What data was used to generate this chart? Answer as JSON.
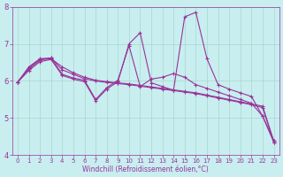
{
  "xlabel": "Windchill (Refroidissement éolien,°C)",
  "x": [
    0,
    1,
    2,
    3,
    4,
    5,
    6,
    7,
    8,
    9,
    10,
    11,
    12,
    13,
    14,
    15,
    16,
    17,
    18,
    19,
    20,
    21,
    22,
    23
  ],
  "line_smooth": [
    5.97,
    6.35,
    6.58,
    6.6,
    6.38,
    6.22,
    6.1,
    6.02,
    5.98,
    5.95,
    5.92,
    5.88,
    5.84,
    5.8,
    5.76,
    5.72,
    5.68,
    5.62,
    5.56,
    5.5,
    5.44,
    5.38,
    5.32,
    4.38
  ],
  "line_medium": [
    5.97,
    6.38,
    6.6,
    6.62,
    6.3,
    6.18,
    6.06,
    6.0,
    5.96,
    5.93,
    5.9,
    5.86,
    5.82,
    5.78,
    5.74,
    5.7,
    5.66,
    5.6,
    5.54,
    5.48,
    5.42,
    5.36,
    5.28,
    4.35
  ],
  "line_volatile": [
    5.97,
    6.32,
    6.56,
    6.62,
    6.18,
    6.08,
    6.02,
    5.5,
    5.82,
    6.02,
    6.95,
    5.85,
    6.05,
    6.1,
    6.2,
    6.1,
    5.9,
    5.8,
    5.7,
    5.6,
    5.5,
    5.4,
    5.05,
    4.4
  ],
  "line_spike": [
    5.97,
    6.28,
    6.52,
    6.58,
    6.15,
    6.05,
    5.98,
    5.47,
    5.78,
    5.98,
    7.0,
    7.3,
    5.95,
    5.85,
    5.75,
    7.73,
    7.85,
    6.6,
    5.9,
    5.78,
    5.68,
    5.58,
    5.05,
    4.35
  ],
  "bg_color": "#c8eef0",
  "line_color": "#993399",
  "grid_color": "#a8d8cc",
  "ylim": [
    4.0,
    8.0
  ],
  "xlim_min": -0.5,
  "xlim_max": 23.5,
  "yticks": [
    4,
    5,
    6,
    7,
    8
  ],
  "xticks": [
    0,
    1,
    2,
    3,
    4,
    5,
    6,
    7,
    8,
    9,
    10,
    11,
    12,
    13,
    14,
    15,
    16,
    17,
    18,
    19,
    20,
    21,
    22,
    23
  ],
  "tick_fontsize": 5,
  "xlabel_fontsize": 5.5
}
